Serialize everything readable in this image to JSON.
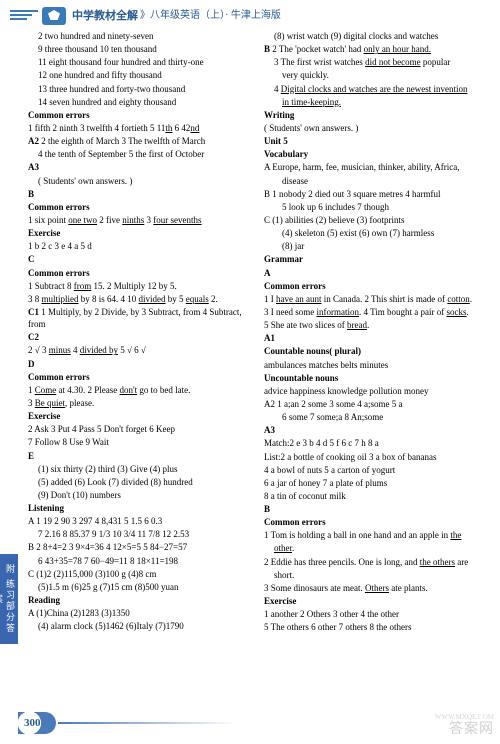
{
  "header": {
    "title": "中学教材全解",
    "sub": "》八年级英语（上）· 牛津上海版"
  },
  "sideTab": "附 练习部分答案",
  "pageNum": "300",
  "watermark": "答案网",
  "wmSmall": "WWW.MXQE.COM",
  "left": {
    "l1": "2 two hundred and ninety-seven",
    "l2": "9 three thousand   10 ten thousand",
    "l3": "11 eight thousand four hundred and thirty-one",
    "l4": "12 one hundred and fifty thousand",
    "l5": "13 three hundred and forty-two thousand",
    "l6": "14 seven hundred and eighty thousand",
    "ce1": "Common errors",
    "ce1_ln": "1 fifth  2 ninth  3 twelfth  4 fortieth  5 11",
    "ce1_u1": "th",
    "ce1_6": "  6 42",
    "ce1_u2": "nd",
    "a2": "A2",
    "a2_1": "  2 the eighth of March   3 The twelfth of March",
    "a2_2": "4 the tenth of September   5 the first of October",
    "a3": "A3",
    "a3_1": "( Students' own answers. )",
    "b": "B",
    "ce2": "Common errors",
    "ce2_1a": "1 six point ",
    "ce2_1u": "one two",
    "ce2_1b": "     2 five ",
    "ce2_2u": "ninths",
    "ce2_1c": "     3 ",
    "ce2_3u": "four sevenths",
    "ex1": "Exercise",
    "ex1_ln": "1 b   2 c   3 e   4 a   5 d",
    "c": "C",
    "ce3": "Common errors",
    "ce3_1a": "1 Subtract 8 ",
    "ce3_1u": "from",
    "ce3_1b": " 15.          2 Multiply 12 by 5.",
    "ce3_2a": "3 8 ",
    "ce3_2u": "multiplied",
    "ce3_2b": " by 8 is 64.     4 10 ",
    "ce3_2c": "divided",
    "ce3_2d": " by 5 ",
    "ce3_2e": "equals",
    "ce3_2f": " 2.",
    "c1": "C1",
    "c1_ln": "  1 Multiply, by   2 Divide, by   3 Subtract, from   4 Subtract, from",
    "c2": "C2",
    "c2_1a": "2 √   3 ",
    "c2_1u": "minus",
    "c2_1b": "   4 ",
    "c2_1c": "divided by",
    "c2_1d": "   5 √   6 √",
    "d": "D",
    "ce4": "Common errors",
    "ce4_1a": "1 ",
    "ce4_1u": "Come",
    "ce4_1b": " at 4.30.   2 Please ",
    "ce4_1c": "don't",
    "ce4_1d": " go to bed late.",
    "ce4_2a": "3 ",
    "ce4_2u": "Be quiet",
    "ce4_2b": ", please.",
    "ex2": "Exercise",
    "ex2_1": "2 Ask   3 Put   4 Pass   5 Don't forget   6 Keep",
    "ex2_2": "7 Follow   8 Use   9 Wait",
    "e": "E",
    "e_1": "(1) six thirty   (2) third   (3) Give   (4) plus",
    "e_2": "(5) added   (6) Look   (7) divided   (8) hundred",
    "e_3": "(9) Don't   (10) numbers",
    "lis": "Listening",
    "lis_a": "A   1 19   2 90   3 297   4 8,431   5 1.5   6 0.3",
    "lis_a2": "7 2.16   8 85.37   9 1/3   10 3/4   11 7/8   12 2.53",
    "lis_b": "B  2 8+4=2   3 9×4=36   4 12×5=5   5 84−27=57",
    "lis_b2": "6 43+35=78   7 60−49=11   8 18×11=198",
    "lis_c": "C  (1)2   (2)115,000   (3)100 g   (4)8 cm",
    "lis_c2": "(5)1.5 m   (6)25 g   (7)15 cm   (8)500 yuan",
    "rd": "Reading",
    "rd_a": "A   (1)China   (2)1283   (3)1350",
    "rd_a2": "(4) alarm clock   (5)1462   (6)Italy   (7)1790"
  },
  "right": {
    "r1": "(8) wrist watch   (9) digital clocks and watches",
    "rb": "B",
    "rb_1a": "  2 The 'pocket watch' had ",
    "rb_1u": "only an hour hand.",
    "rb_2a": "3 The first wrist watches ",
    "rb_2u": "did not become",
    "rb_2b": " popular",
    "rb_2c": "very quickly.",
    "rb_3a": "4 ",
    "rb_3u": "Digital clocks and watches are the newest invention",
    "rb_3b": "in time-keeping.",
    "wr": "Writing",
    "wr_1": "( Students' own answers. )",
    "u5": "Unit 5",
    "voc": "Vocabulary",
    "voc_a": "A   Europe, harm, fee, musician, thinker, ability, Africa,",
    "voc_a2": "disease",
    "voc_b": "B   1 nobody   2 died out   3 square metres   4 harmful",
    "voc_b2": "5 look up   6 includes   7 though",
    "voc_c": "C   (1) abilities   (2) believe   (3) footprints",
    "voc_c2": "(4) skeleton   (5) exist   (6) own   (7) harmless",
    "voc_c3": "(8) jar",
    "gr": "Grammar",
    "gr_a": "A",
    "ce5": "Common errors",
    "ce5_1a": "1 I ",
    "ce5_1u": "have an aunt",
    "ce5_1b": " in Canada.  2 This shirt is made of ",
    "ce5_1c": "cotton",
    "ce5_1d": ".",
    "ce5_2a": "3 I need some ",
    "ce5_2u": "information",
    "ce5_2b": ".  4 Tim bought a pair of ",
    "ce5_2c": "socks",
    "ce5_2d": ".",
    "ce5_3a": "5 She ate two slices of ",
    "ce5_3u": "bread",
    "ce5_3b": ".",
    "a1": "A1",
    "cn": "Countable nouns( plural)",
    "cn_1": "ambulances   matches   belts   minutes",
    "un": "Uncountable nouns",
    "un_1": "advice   happiness   knowledge   pollution   money",
    "ra2": "A2    1 a;an   2 some   3 some   4 a;some   5 a",
    "ra2_2": "6 some   7 some;a   8 An;some",
    "ra3": "A3",
    "ra3_m": "Match:2 e   3 b   4 d   5 f   6 c   7 h   8 a",
    "ra3_l": "List:2 a bottle of cooking oil  3 a box of bananas",
    "ra3_4": "4 a bowl of nuts             5 a carton of yogurt",
    "ra3_6": "6 a jar of honey              7 a plate of plums",
    "ra3_8": "8 a tin of coconut milk",
    "rb2": "B",
    "ce6": "Common errors",
    "ce6_1a": "1 Tom is holding a ball in one hand and an apple in ",
    "ce6_1u": "the",
    "ce6_1b": "other",
    "ce6_1c": ".",
    "ce6_2a": "2 Eddie has three pencils. One is long, and ",
    "ce6_2u": "the others",
    "ce6_2b": " are",
    "ce6_2c": "short.",
    "ce6_3a": "3 Some dinosaurs ate meat. ",
    "ce6_3u": "Others",
    "ce6_3b": " ate plants.",
    "ex3": "Exercise",
    "ex3_1": "1 another   2 Others   3 other   4 the other",
    "ex3_2": "5 The others   6 other   7 others   8 the others"
  }
}
